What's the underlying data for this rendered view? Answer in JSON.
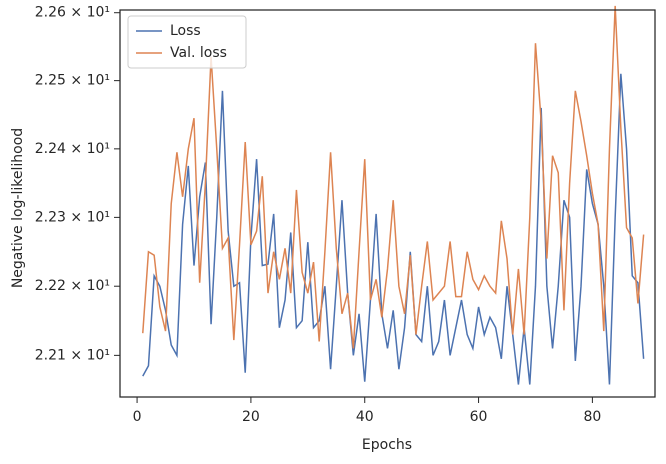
{
  "chart_data": {
    "type": "line",
    "xlabel": "Epochs",
    "ylabel": "Negative log-likelihood",
    "x": [
      1,
      2,
      3,
      4,
      5,
      6,
      7,
      8,
      9,
      10,
      11,
      12,
      13,
      14,
      15,
      16,
      17,
      18,
      19,
      20,
      21,
      22,
      23,
      24,
      25,
      26,
      27,
      28,
      29,
      30,
      31,
      32,
      33,
      34,
      35,
      36,
      37,
      38,
      39,
      40,
      41,
      42,
      43,
      44,
      45,
      46,
      47,
      48,
      49,
      50,
      51,
      52,
      53,
      54,
      55,
      56,
      57,
      58,
      59,
      60,
      61,
      62,
      63,
      64,
      65,
      66,
      67,
      68,
      69,
      70,
      71,
      72,
      73,
      74,
      75,
      76,
      77,
      78,
      79,
      80,
      81,
      82,
      83,
      84,
      85,
      86,
      87,
      88,
      89
    ],
    "series": [
      {
        "name": "Loss",
        "color": "#4c72b0",
        "values": [
          22.07,
          22.085,
          22.215,
          22.2,
          22.165,
          22.115,
          22.1,
          22.29,
          22.375,
          22.23,
          22.33,
          22.38,
          22.145,
          22.3,
          22.485,
          22.28,
          22.2,
          22.205,
          22.075,
          22.27,
          22.385,
          22.23,
          22.232,
          22.305,
          22.14,
          22.18,
          22.278,
          22.14,
          22.15,
          22.264,
          22.14,
          22.15,
          22.2,
          22.08,
          22.2,
          22.325,
          22.19,
          22.1,
          22.16,
          22.062,
          22.18,
          22.305,
          22.16,
          22.11,
          22.165,
          22.08,
          22.14,
          22.25,
          22.13,
          22.12,
          22.2,
          22.1,
          22.12,
          22.18,
          22.1,
          22.14,
          22.18,
          22.13,
          22.11,
          22.17,
          22.13,
          22.155,
          22.14,
          22.095,
          22.2,
          22.13,
          22.058,
          22.14,
          22.058,
          22.2,
          22.46,
          22.2,
          22.11,
          22.2,
          22.325,
          22.3,
          22.092,
          22.2,
          22.37,
          22.32,
          22.29,
          22.2,
          22.058,
          22.3,
          22.51,
          22.4,
          22.215,
          22.205,
          22.095
        ]
      },
      {
        "name": "Val. loss",
        "color": "#dd8452",
        "values": [
          22.132,
          22.25,
          22.245,
          22.17,
          22.135,
          22.32,
          22.395,
          22.33,
          22.4,
          22.445,
          22.205,
          22.35,
          22.535,
          22.4,
          22.255,
          22.27,
          22.122,
          22.26,
          22.41,
          22.26,
          22.28,
          22.36,
          22.19,
          22.25,
          22.21,
          22.255,
          22.19,
          22.34,
          22.22,
          22.19,
          22.235,
          22.12,
          22.25,
          22.395,
          22.255,
          22.16,
          22.19,
          22.11,
          22.25,
          22.385,
          22.18,
          22.21,
          22.155,
          22.225,
          22.325,
          22.2,
          22.16,
          22.245,
          22.13,
          22.2,
          22.265,
          22.18,
          22.19,
          22.2,
          22.265,
          22.185,
          22.185,
          22.25,
          22.21,
          22.195,
          22.215,
          22.2,
          22.19,
          22.295,
          22.24,
          22.13,
          22.225,
          22.13,
          22.3,
          22.555,
          22.44,
          22.24,
          22.39,
          22.365,
          22.165,
          22.35,
          22.485,
          22.44,
          22.39,
          22.335,
          22.29,
          22.135,
          22.4,
          22.61,
          22.43,
          22.285,
          22.27,
          22.175,
          22.275
        ]
      }
    ],
    "xlim": [
      -3,
      91
    ],
    "xticks": [
      0,
      20,
      40,
      60,
      80
    ],
    "ylim": [
      22.04,
      22.604
    ],
    "ylog": true,
    "yticks": [
      {
        "value": 22.1,
        "label": "2.21 × 10¹"
      },
      {
        "value": 22.2,
        "label": "2.22 × 10¹"
      },
      {
        "value": 22.3,
        "label": "2.23 × 10¹"
      },
      {
        "value": 22.4,
        "label": "2.24 × 10¹"
      },
      {
        "value": 22.5,
        "label": "2.25 × 10¹"
      },
      {
        "value": 22.6,
        "label": "2.26 × 10¹"
      }
    ],
    "legend": "upper left",
    "grid": false
  }
}
